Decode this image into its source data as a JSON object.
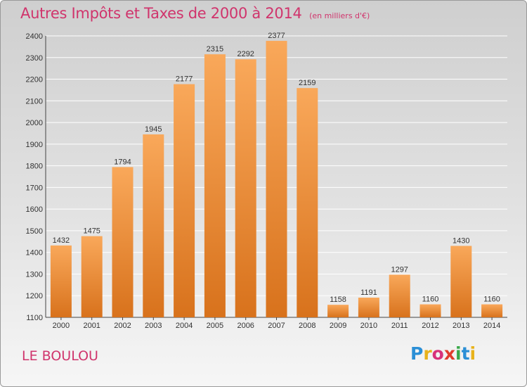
{
  "header": {
    "title": "Autres Impôts et Taxes de 2000 à 2014",
    "unit": "(en milliers d'€)"
  },
  "footer": {
    "location": "LE BOULOU",
    "logo": {
      "text": "Proxiti",
      "letters": [
        {
          "char": "P",
          "color": "#2b8fd6"
        },
        {
          "char": "r",
          "color": "#e8b21a"
        },
        {
          "char": "o",
          "color": "#d8317a"
        },
        {
          "char": "x",
          "color": "#e03c2c"
        },
        {
          "char": "i",
          "color": "#3aa84a"
        },
        {
          "char": "t",
          "color": "#2b8fd6"
        },
        {
          "char": "i",
          "color": "#e8b21a"
        }
      ]
    }
  },
  "colors": {
    "title": "#d0346c",
    "bar_top": "#f9a85a",
    "bar_bottom": "#d8721c",
    "grid": "#ffffff",
    "text": "#333333"
  },
  "chart_data": {
    "type": "bar",
    "categories": [
      "2000",
      "2001",
      "2002",
      "2003",
      "2004",
      "2005",
      "2006",
      "2007",
      "2008",
      "2009",
      "2010",
      "2011",
      "2012",
      "2013",
      "2014"
    ],
    "values": [
      1432,
      1475,
      1794,
      1945,
      2177,
      2315,
      2292,
      2377,
      2159,
      1158,
      1191,
      1297,
      1160,
      1430,
      1160
    ],
    "value_labels": [
      "1432",
      "1475",
      "1794",
      "1945",
      "2177",
      "2315",
      "2292",
      "2377",
      "2159",
      "1158",
      "1191",
      "1297",
      "1160",
      "1430",
      "1160"
    ],
    "title": "Autres Impôts et Taxes de 2000 à 2014",
    "xlabel": "",
    "ylabel": "",
    "ylim": [
      1100,
      2400
    ],
    "yticks": [
      1100,
      1200,
      1300,
      1400,
      1500,
      1600,
      1700,
      1800,
      1900,
      2000,
      2100,
      2200,
      2300,
      2400
    ],
    "grid": true,
    "legend": "none"
  }
}
